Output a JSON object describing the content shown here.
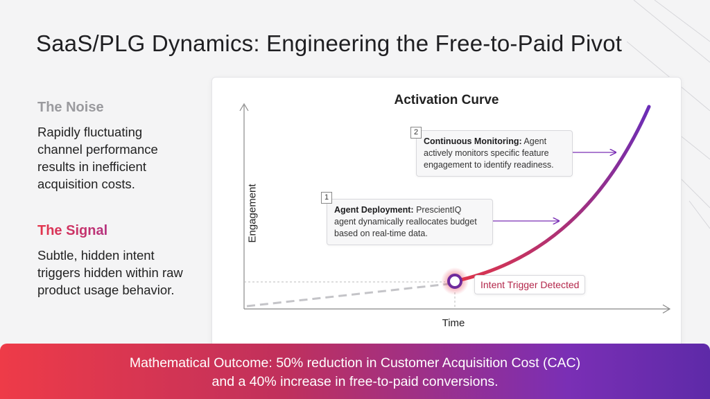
{
  "title": "SaaS/PLG Dynamics: Engineering the Free-to-Paid Pivot",
  "noise": {
    "heading": "The Noise",
    "text": "Rapidly fluctuating channel performance results in inefficient acquisition costs."
  },
  "signal": {
    "heading": "The Signal",
    "text": "Subtle, hidden intent triggers hidden within raw product usage behavior."
  },
  "diagram": {
    "title": "Activation Curve",
    "ylabel": "Engagement",
    "xlabel": "Time",
    "callout_2": {
      "number": "2",
      "bold": "Continuous Monitoring:",
      "text": " Agent actively monitors specific feature engagement to identify readiness."
    },
    "callout_1": {
      "number": "1",
      "bold": "Agent Deployment:",
      "text": " PrescientIQ agent dynamically reallocates budget based on real-time data."
    },
    "trigger_label": "Intent Trigger Detected"
  },
  "footer": {
    "line1": "Mathematical Outcome: 50% reduction in Customer Acquisition Cost (CAC)",
    "line2": "and a 40% increase in free-to-paid conversions."
  },
  "colors": {
    "accent_red": "#e5354a",
    "accent_purple": "#7b2fbe",
    "noise_gray": "#9a9a9e"
  }
}
